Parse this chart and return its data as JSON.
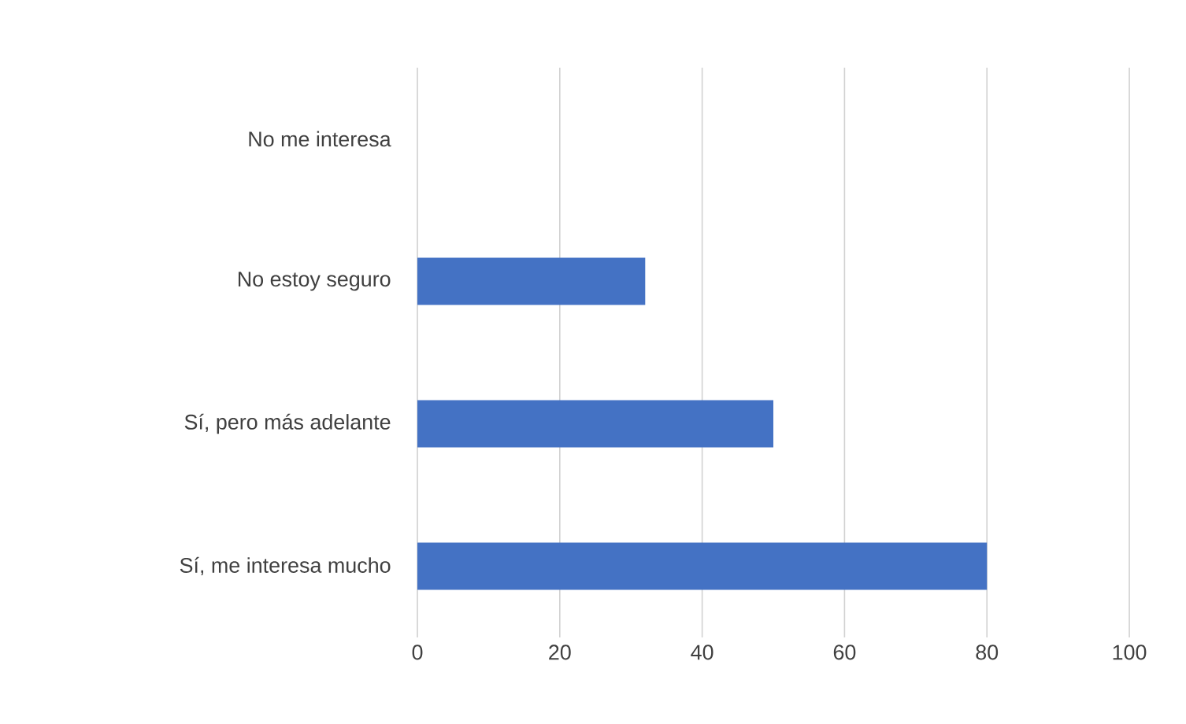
{
  "chart_data": {
    "type": "bar",
    "orientation": "horizontal",
    "categories": [
      "No me interesa",
      "No estoy seguro",
      "Sí, pero más adelante",
      "Sí, me interesa mucho"
    ],
    "values": [
      0,
      32,
      50,
      80
    ],
    "color": "#4472c4",
    "xlim": [
      0,
      100
    ],
    "xticks": [
      0,
      20,
      40,
      60,
      80,
      100
    ],
    "grid": "x"
  }
}
